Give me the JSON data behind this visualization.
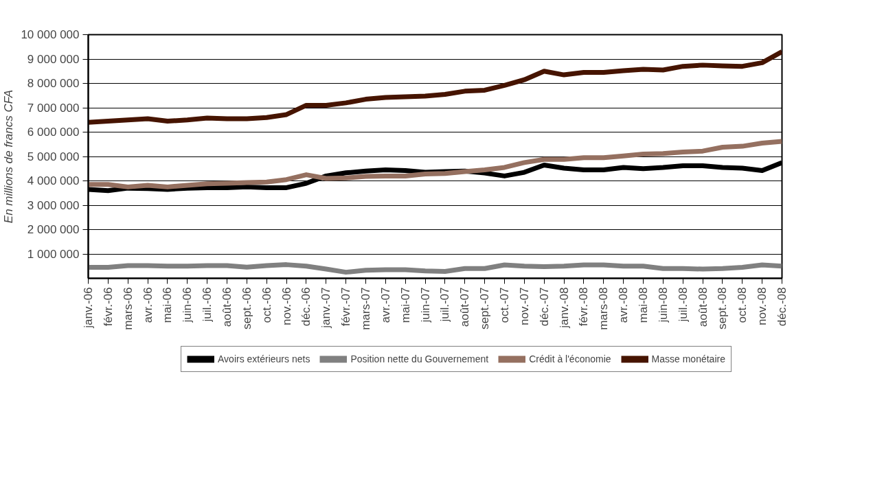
{
  "chart_data": {
    "type": "line",
    "ylabel": "En millions de francs CFA",
    "categories": [
      "janv.-06",
      "févr.-06",
      "mars-06",
      "avr.-06",
      "mai-06",
      "juin-06",
      "juil.-06",
      "août-06",
      "sept.-06",
      "oct.-06",
      "nov.-06",
      "déc.-06",
      "janv.-07",
      "févr.-07",
      "mars-07",
      "avr.-07",
      "mai-07",
      "juin-07",
      "juil.-07",
      "août-07",
      "sept.-07",
      "oct.-07",
      "nov.-07",
      "déc.-07",
      "janv.-08",
      "févr.-08",
      "mars-08",
      "avr.-08",
      "mai-08",
      "juin-08",
      "juil.-08",
      "août-08",
      "sept.-08",
      "oct.-08",
      "nov.-08",
      "déc.-08"
    ],
    "series": [
      {
        "name": "Avoirs extérieurs nets",
        "color": "#000000",
        "values": [
          3650000,
          3600000,
          3700000,
          3680000,
          3650000,
          3700000,
          3720000,
          3720000,
          3750000,
          3720000,
          3720000,
          3900000,
          4200000,
          4330000,
          4400000,
          4450000,
          4420000,
          4350000,
          4380000,
          4400000,
          4320000,
          4200000,
          4350000,
          4650000,
          4520000,
          4450000,
          4450000,
          4550000,
          4500000,
          4550000,
          4620000,
          4620000,
          4550000,
          4520000,
          4420000,
          4750000
        ]
      },
      {
        "name": "Position nette du Gouvernement",
        "color": "#808080",
        "values": [
          450000,
          450000,
          520000,
          520000,
          500000,
          500000,
          520000,
          520000,
          460000,
          520000,
          560000,
          500000,
          380000,
          250000,
          330000,
          350000,
          350000,
          300000,
          280000,
          400000,
          400000,
          550000,
          500000,
          480000,
          500000,
          550000,
          550000,
          500000,
          500000,
          400000,
          400000,
          380000,
          400000,
          450000,
          550000,
          500000
        ]
      },
      {
        "name": "Crédit à l'économie",
        "color": "#957060",
        "values": [
          3850000,
          3850000,
          3750000,
          3820000,
          3750000,
          3820000,
          3880000,
          3900000,
          3930000,
          3950000,
          4050000,
          4250000,
          4100000,
          4120000,
          4180000,
          4200000,
          4200000,
          4280000,
          4300000,
          4380000,
          4450000,
          4550000,
          4750000,
          4880000,
          4880000,
          4950000,
          4950000,
          5020000,
          5100000,
          5120000,
          5180000,
          5220000,
          5380000,
          5420000,
          5550000,
          5620000
        ]
      },
      {
        "name": "Masse monétaire",
        "color": "#461400",
        "values": [
          6400000,
          6450000,
          6500000,
          6550000,
          6450000,
          6500000,
          6580000,
          6550000,
          6550000,
          6600000,
          6720000,
          7100000,
          7100000,
          7200000,
          7350000,
          7420000,
          7450000,
          7480000,
          7550000,
          7680000,
          7720000,
          7920000,
          8150000,
          8500000,
          8350000,
          8450000,
          8450000,
          8520000,
          8580000,
          8550000,
          8700000,
          8750000,
          8720000,
          8700000,
          8850000,
          9300000
        ]
      }
    ],
    "ylim": [
      0,
      10000000
    ],
    "yticks": [
      {
        "value": 1000000,
        "label": "1 000 000"
      },
      {
        "value": 2000000,
        "label": "2 000 000"
      },
      {
        "value": 3000000,
        "label": "3 000 000"
      },
      {
        "value": 4000000,
        "label": "4 000 000"
      },
      {
        "value": 5000000,
        "label": "5 000 000"
      },
      {
        "value": 6000000,
        "label": "6 000 000"
      },
      {
        "value": 7000000,
        "label": "7 000 000"
      },
      {
        "value": 8000000,
        "label": "8 000 000"
      },
      {
        "value": 9000000,
        "label": "9 000 000"
      },
      {
        "value": 10000000,
        "label": "10 000 000"
      }
    ],
    "grid": "y",
    "legend": "bottom",
    "marker": "none",
    "line_style": "solid"
  }
}
